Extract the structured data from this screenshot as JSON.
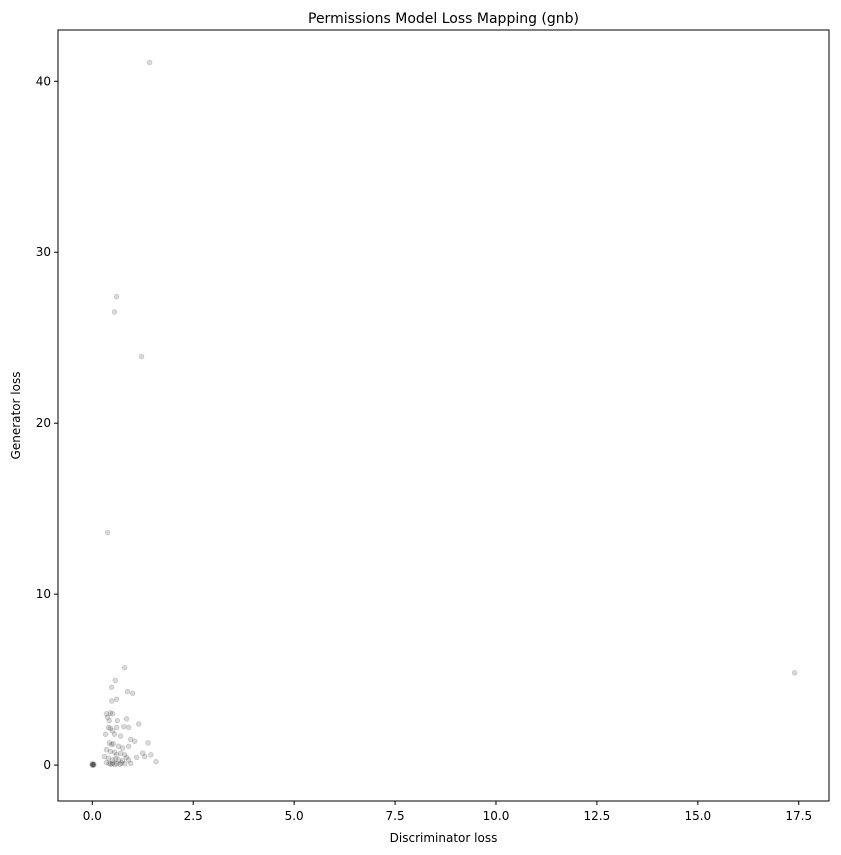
{
  "chart_data": {
    "type": "scatter",
    "title": "Permissions Model Loss Mapping (gnb)",
    "xlabel": "Discriminator loss",
    "ylabel": "Generator loss",
    "xlim": [
      -0.85,
      18.25
    ],
    "ylim": [
      -2.1,
      43.0
    ],
    "xticks": [
      0.0,
      2.5,
      5.0,
      7.5,
      10.0,
      12.5,
      15.0,
      17.5
    ],
    "xtick_labels": [
      "0.0",
      "2.5",
      "5.0",
      "7.5",
      "10.0",
      "12.5",
      "15.0",
      "17.5"
    ],
    "yticks": [
      0,
      10,
      20,
      30,
      40
    ],
    "ytick_labels": [
      "0",
      "10",
      "20",
      "30",
      "40"
    ],
    "grid": false,
    "marker_color": "#000000",
    "marker_alpha": 0.15,
    "points": [
      {
        "x": 1.42,
        "y": 41.1
      },
      {
        "x": 0.6,
        "y": 27.4
      },
      {
        "x": 0.55,
        "y": 26.5
      },
      {
        "x": 1.22,
        "y": 23.9
      },
      {
        "x": 0.38,
        "y": 13.6
      },
      {
        "x": 17.4,
        "y": 5.4
      },
      {
        "x": 0.8,
        "y": 5.7
      },
      {
        "x": 0.57,
        "y": 4.95
      },
      {
        "x": 0.48,
        "y": 4.55
      },
      {
        "x": 0.87,
        "y": 4.3
      },
      {
        "x": 1.0,
        "y": 4.2
      },
      {
        "x": 0.6,
        "y": 3.85
      },
      {
        "x": 0.48,
        "y": 3.75
      },
      {
        "x": 0.35,
        "y": 3.0
      },
      {
        "x": 0.45,
        "y": 3.05
      },
      {
        "x": 0.5,
        "y": 3.0
      },
      {
        "x": 0.38,
        "y": 2.8
      },
      {
        "x": 0.42,
        "y": 2.6
      },
      {
        "x": 0.62,
        "y": 2.6
      },
      {
        "x": 0.85,
        "y": 2.7
      },
      {
        "x": 1.15,
        "y": 2.4
      },
      {
        "x": 0.4,
        "y": 2.2
      },
      {
        "x": 0.45,
        "y": 2.15
      },
      {
        "x": 0.5,
        "y": 2.0
      },
      {
        "x": 0.6,
        "y": 2.2
      },
      {
        "x": 0.78,
        "y": 2.25
      },
      {
        "x": 0.9,
        "y": 2.2
      },
      {
        "x": 0.33,
        "y": 1.8
      },
      {
        "x": 0.55,
        "y": 1.8
      },
      {
        "x": 0.7,
        "y": 1.7
      },
      {
        "x": 0.95,
        "y": 1.5
      },
      {
        "x": 1.05,
        "y": 1.4
      },
      {
        "x": 0.42,
        "y": 1.3
      },
      {
        "x": 0.48,
        "y": 1.2
      },
      {
        "x": 0.52,
        "y": 1.25
      },
      {
        "x": 0.65,
        "y": 1.1
      },
      {
        "x": 0.75,
        "y": 1.0
      },
      {
        "x": 0.9,
        "y": 1.1
      },
      {
        "x": 1.38,
        "y": 1.3
      },
      {
        "x": 0.35,
        "y": 0.9
      },
      {
        "x": 0.45,
        "y": 0.8
      },
      {
        "x": 0.55,
        "y": 0.75
      },
      {
        "x": 0.6,
        "y": 0.6
      },
      {
        "x": 0.7,
        "y": 0.7
      },
      {
        "x": 0.8,
        "y": 0.6
      },
      {
        "x": 0.85,
        "y": 0.45
      },
      {
        "x": 1.25,
        "y": 0.7
      },
      {
        "x": 1.45,
        "y": 0.6
      },
      {
        "x": 1.3,
        "y": 0.5
      },
      {
        "x": 0.3,
        "y": 0.5
      },
      {
        "x": 0.4,
        "y": 0.4
      },
      {
        "x": 0.5,
        "y": 0.3
      },
      {
        "x": 0.58,
        "y": 0.35
      },
      {
        "x": 0.65,
        "y": 0.3
      },
      {
        "x": 0.75,
        "y": 0.25
      },
      {
        "x": 0.9,
        "y": 0.3
      },
      {
        "x": 1.1,
        "y": 0.45
      },
      {
        "x": 1.58,
        "y": 0.2
      },
      {
        "x": 0.35,
        "y": 0.15
      },
      {
        "x": 0.42,
        "y": 0.1
      },
      {
        "x": 0.46,
        "y": 0.05
      },
      {
        "x": 0.5,
        "y": 0.1
      },
      {
        "x": 0.55,
        "y": 0.05
      },
      {
        "x": 0.6,
        "y": 0.08
      },
      {
        "x": 0.68,
        "y": 0.05
      },
      {
        "x": 0.72,
        "y": 0.12
      },
      {
        "x": 0.8,
        "y": 0.08
      },
      {
        "x": 0.95,
        "y": 0.1
      },
      {
        "x": 0.0,
        "y": 0.0
      },
      {
        "x": 0.01,
        "y": 0.02
      },
      {
        "x": 0.02,
        "y": 0.05
      },
      {
        "x": 0.03,
        "y": 0.0
      },
      {
        "x": 0.0,
        "y": 0.08
      },
      {
        "x": 0.04,
        "y": 0.03
      }
    ]
  }
}
